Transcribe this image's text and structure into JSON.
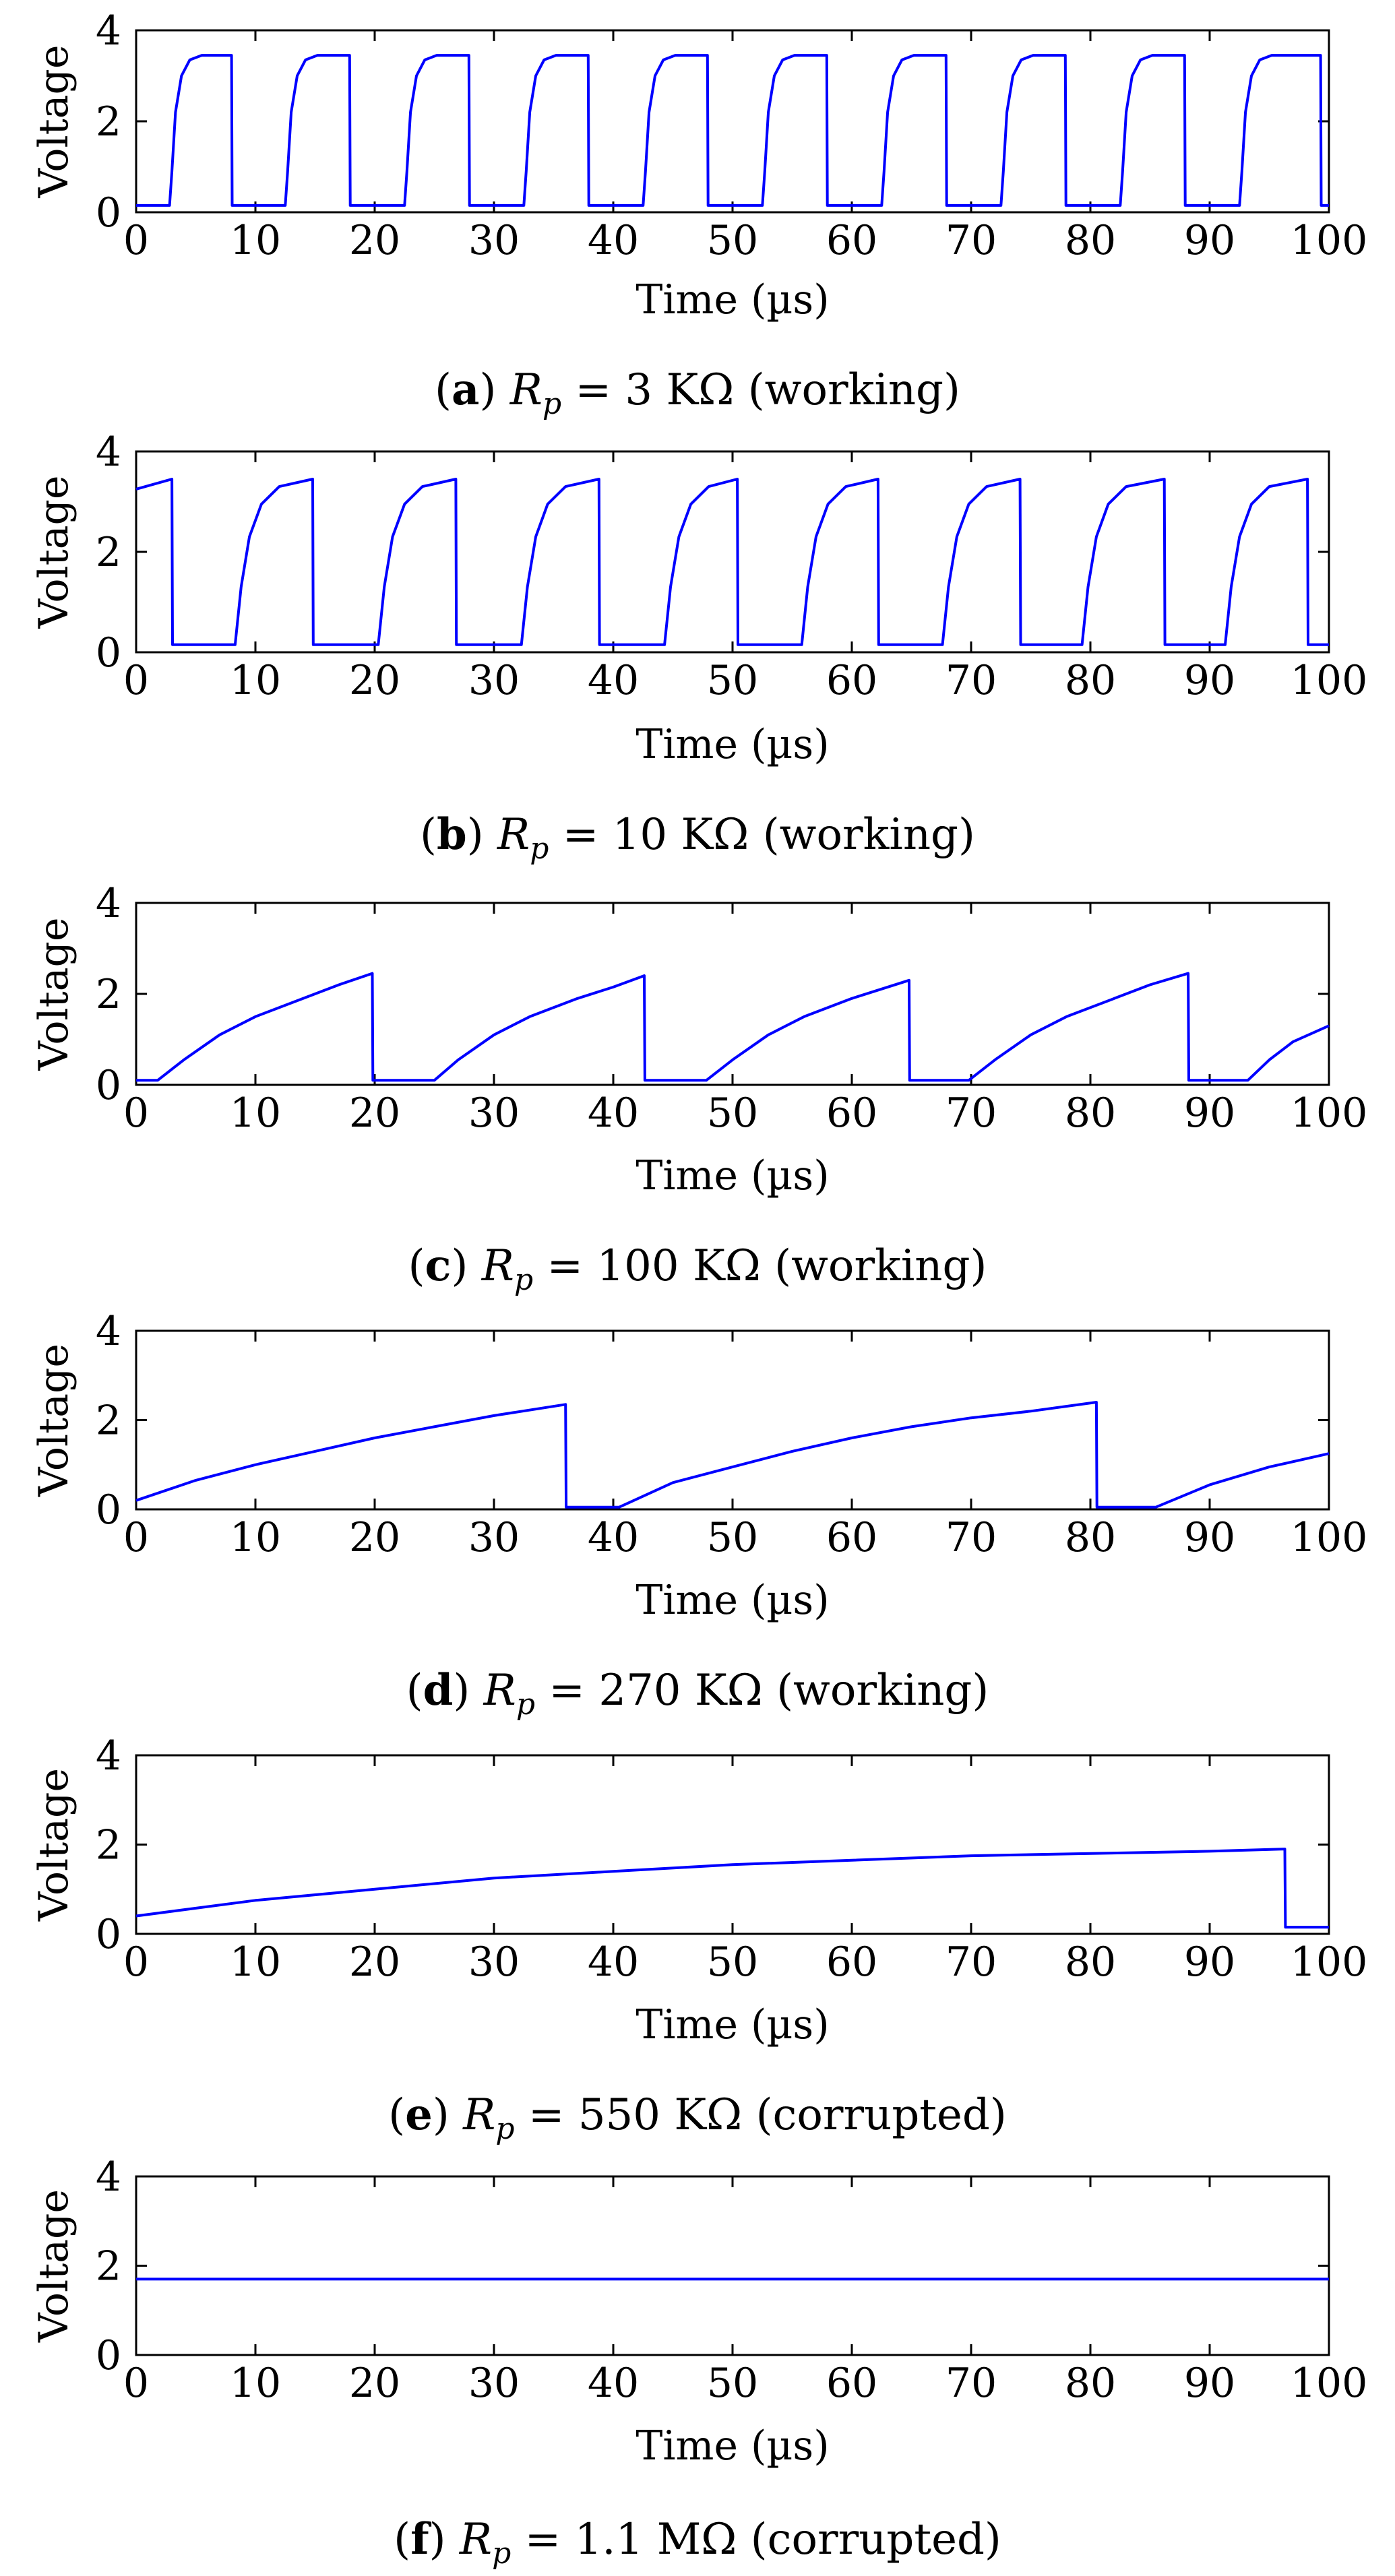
{
  "figure": {
    "panel_count": 6
  },
  "chart_data": [
    {
      "type": "line",
      "panel_id": "a",
      "caption_letter": "a",
      "caption_symbol": "R",
      "caption_subscript": "p",
      "caption_rest": " = 3 KΩ (working)",
      "xlabel": "Time (µs)",
      "ylabel": "Voltage",
      "xlim": [
        0,
        100
      ],
      "ylim": [
        0,
        4
      ],
      "xticks": [
        0,
        10,
        20,
        30,
        40,
        50,
        60,
        70,
        80,
        90,
        100
      ],
      "yticks": [
        0,
        2,
        4
      ],
      "line_color": "#0000ff",
      "series": [
        {
          "name": "a",
          "x": [
            0,
            2.8,
            3.0,
            3.3,
            3.8,
            4.5,
            5.5,
            8.0,
            8.05,
            12.5,
            12.7,
            13.0,
            13.5,
            14.2,
            15.2,
            17.9,
            17.95,
            22.5,
            22.7,
            23.0,
            23.5,
            24.2,
            25.2,
            27.9,
            27.95,
            32.5,
            32.7,
            33.0,
            33.5,
            34.2,
            35.2,
            37.9,
            37.95,
            42.5,
            42.7,
            43.0,
            43.5,
            44.2,
            45.2,
            47.9,
            47.95,
            52.5,
            52.7,
            53.0,
            53.5,
            54.2,
            55.2,
            57.9,
            57.95,
            62.5,
            62.7,
            63.0,
            63.5,
            64.2,
            65.2,
            67.9,
            67.95,
            72.5,
            72.7,
            73.0,
            73.5,
            74.2,
            75.2,
            77.9,
            77.95,
            82.5,
            82.7,
            83.0,
            83.5,
            84.2,
            85.2,
            87.9,
            87.95,
            92.5,
            92.7,
            93.0,
            93.5,
            94.2,
            95.2,
            99.3,
            99.35,
            100
          ],
          "y": [
            0.15,
            0.15,
            0.9,
            2.2,
            3.0,
            3.35,
            3.45,
            3.45,
            0.15,
            0.15,
            0.9,
            2.2,
            3.0,
            3.35,
            3.45,
            3.45,
            0.15,
            0.15,
            0.9,
            2.2,
            3.0,
            3.35,
            3.45,
            3.45,
            0.15,
            0.15,
            0.9,
            2.2,
            3.0,
            3.35,
            3.45,
            3.45,
            0.15,
            0.15,
            0.9,
            2.2,
            3.0,
            3.35,
            3.45,
            3.45,
            0.15,
            0.15,
            0.9,
            2.2,
            3.0,
            3.35,
            3.45,
            3.45,
            0.15,
            0.15,
            0.9,
            2.2,
            3.0,
            3.35,
            3.45,
            3.45,
            0.15,
            0.15,
            0.9,
            2.2,
            3.0,
            3.35,
            3.45,
            3.45,
            0.15,
            0.15,
            0.9,
            2.2,
            3.0,
            3.35,
            3.45,
            3.45,
            0.15,
            0.15,
            0.9,
            2.2,
            3.0,
            3.35,
            3.45,
            3.45,
            0.15,
            0.15
          ]
        }
      ]
    },
    {
      "type": "line",
      "panel_id": "b",
      "caption_letter": "b",
      "caption_symbol": "R",
      "caption_subscript": "p",
      "caption_rest": " = 10 KΩ (working)",
      "xlabel": "Time (µs)",
      "ylabel": "Voltage",
      "xlim": [
        0,
        100
      ],
      "ylim": [
        0,
        4
      ],
      "xticks": [
        0,
        10,
        20,
        30,
        40,
        50,
        60,
        70,
        80,
        90,
        100
      ],
      "yticks": [
        0,
        2,
        4
      ],
      "line_color": "#0000ff",
      "series": [
        {
          "name": "b",
          "x": [
            0,
            3.0,
            3.05,
            8.3,
            8.8,
            9.5,
            10.5,
            12,
            14.8,
            14.85,
            20.3,
            20.8,
            21.5,
            22.5,
            24,
            26.8,
            26.85,
            32.3,
            32.8,
            33.5,
            34.5,
            36,
            38.8,
            38.85,
            44.3,
            44.8,
            45.5,
            46.5,
            48,
            50.4,
            50.45,
            55.8,
            56.3,
            57.0,
            58.0,
            59.5,
            62.2,
            62.25,
            67.6,
            68.1,
            68.8,
            69.8,
            71.3,
            74.1,
            74.15,
            79.3,
            79.8,
            80.5,
            81.5,
            83,
            86.2,
            86.25,
            91.3,
            91.8,
            92.5,
            93.5,
            95,
            98.2,
            98.25,
            100
          ],
          "y": [
            3.25,
            3.45,
            0.15,
            0.15,
            1.3,
            2.3,
            2.95,
            3.3,
            3.45,
            0.15,
            0.15,
            1.3,
            2.3,
            2.95,
            3.3,
            3.45,
            0.15,
            0.15,
            1.3,
            2.3,
            2.95,
            3.3,
            3.45,
            0.15,
            0.15,
            1.3,
            2.3,
            2.95,
            3.3,
            3.45,
            0.15,
            0.15,
            1.3,
            2.3,
            2.95,
            3.3,
            3.45,
            0.15,
            0.15,
            1.3,
            2.3,
            2.95,
            3.3,
            3.45,
            0.15,
            0.15,
            1.3,
            2.3,
            2.95,
            3.3,
            3.45,
            0.15,
            0.15,
            1.3,
            2.3,
            2.95,
            3.3,
            3.45,
            0.15,
            0.15
          ]
        }
      ]
    },
    {
      "type": "line",
      "panel_id": "c",
      "caption_letter": "c",
      "caption_symbol": "R",
      "caption_subscript": "p",
      "caption_rest": " = 100 KΩ (working)",
      "xlabel": "Time (µs)",
      "ylabel": "Voltage",
      "xlim": [
        0,
        100
      ],
      "ylim": [
        0,
        4
      ],
      "xticks": [
        0,
        10,
        20,
        30,
        40,
        50,
        60,
        70,
        80,
        90,
        100
      ],
      "yticks": [
        0,
        2,
        4
      ],
      "line_color": "#0000ff",
      "series": [
        {
          "name": "c",
          "x": [
            0,
            1.8,
            4,
            7,
            10,
            14,
            17,
            19.8,
            19.85,
            25.0,
            27,
            30,
            33,
            37,
            40,
            42.6,
            42.65,
            47.8,
            50,
            53,
            56,
            60,
            64.8,
            64.85,
            69.8,
            72,
            75,
            78,
            82,
            85,
            88.2,
            88.25,
            93.2,
            95,
            97,
            100
          ],
          "y": [
            0.1,
            0.1,
            0.55,
            1.1,
            1.5,
            1.9,
            2.2,
            2.45,
            0.1,
            0.1,
            0.55,
            1.1,
            1.5,
            1.9,
            2.15,
            2.4,
            0.1,
            0.1,
            0.55,
            1.1,
            1.5,
            1.9,
            2.3,
            0.1,
            0.1,
            0.55,
            1.1,
            1.5,
            1.9,
            2.2,
            2.45,
            0.1,
            0.1,
            0.55,
            0.95,
            1.3
          ]
        }
      ]
    },
    {
      "type": "line",
      "panel_id": "d",
      "caption_letter": "d",
      "caption_symbol": "R",
      "caption_subscript": "p",
      "caption_rest": " = 270 KΩ (working)",
      "xlabel": "Time (µs)",
      "ylabel": "Voltage",
      "xlim": [
        0,
        100
      ],
      "ylim": [
        0,
        4
      ],
      "xticks": [
        0,
        10,
        20,
        30,
        40,
        50,
        60,
        70,
        80,
        90,
        100
      ],
      "yticks": [
        0,
        2,
        4
      ],
      "line_color": "#0000ff",
      "series": [
        {
          "name": "d",
          "x": [
            0,
            5,
            10,
            15,
            20,
            25,
            30,
            36,
            36.05,
            40.5,
            45,
            50,
            55,
            60,
            65,
            70,
            75,
            80.5,
            80.55,
            85.5,
            90,
            95,
            100
          ],
          "y": [
            0.2,
            0.65,
            1.0,
            1.3,
            1.6,
            1.85,
            2.1,
            2.35,
            0.05,
            0.05,
            0.6,
            0.95,
            1.3,
            1.6,
            1.85,
            2.05,
            2.2,
            2.4,
            0.05,
            0.05,
            0.55,
            0.95,
            1.25
          ]
        }
      ]
    },
    {
      "type": "line",
      "panel_id": "e",
      "caption_letter": "e",
      "caption_symbol": "R",
      "caption_subscript": "p",
      "caption_rest": " = 550 KΩ (corrupted)",
      "xlabel": "Time (µs)",
      "ylabel": "Voltage",
      "xlim": [
        0,
        100
      ],
      "ylim": [
        0,
        4
      ],
      "xticks": [
        0,
        10,
        20,
        30,
        40,
        50,
        60,
        70,
        80,
        90,
        100
      ],
      "yticks": [
        0,
        2,
        4
      ],
      "line_color": "#0000ff",
      "series": [
        {
          "name": "e",
          "x": [
            0,
            10,
            20,
            30,
            40,
            50,
            60,
            70,
            80,
            90,
            96.3,
            96.35,
            100
          ],
          "y": [
            0.4,
            0.75,
            1.0,
            1.25,
            1.4,
            1.55,
            1.65,
            1.75,
            1.8,
            1.85,
            1.9,
            0.15,
            0.15
          ]
        }
      ]
    },
    {
      "type": "line",
      "panel_id": "f",
      "caption_letter": "f",
      "caption_symbol": "R",
      "caption_subscript": "p",
      "caption_rest": " = 1.1 MΩ (corrupted)",
      "xlabel": "Time (µs)",
      "ylabel": "Voltage",
      "xlim": [
        0,
        100
      ],
      "ylim": [
        0,
        4
      ],
      "xticks": [
        0,
        10,
        20,
        30,
        40,
        50,
        60,
        70,
        80,
        90,
        100
      ],
      "yticks": [
        0,
        2,
        4
      ],
      "line_color": "#0000ff",
      "series": [
        {
          "name": "f",
          "x": [
            0,
            100
          ],
          "y": [
            1.7,
            1.7
          ]
        }
      ]
    }
  ]
}
